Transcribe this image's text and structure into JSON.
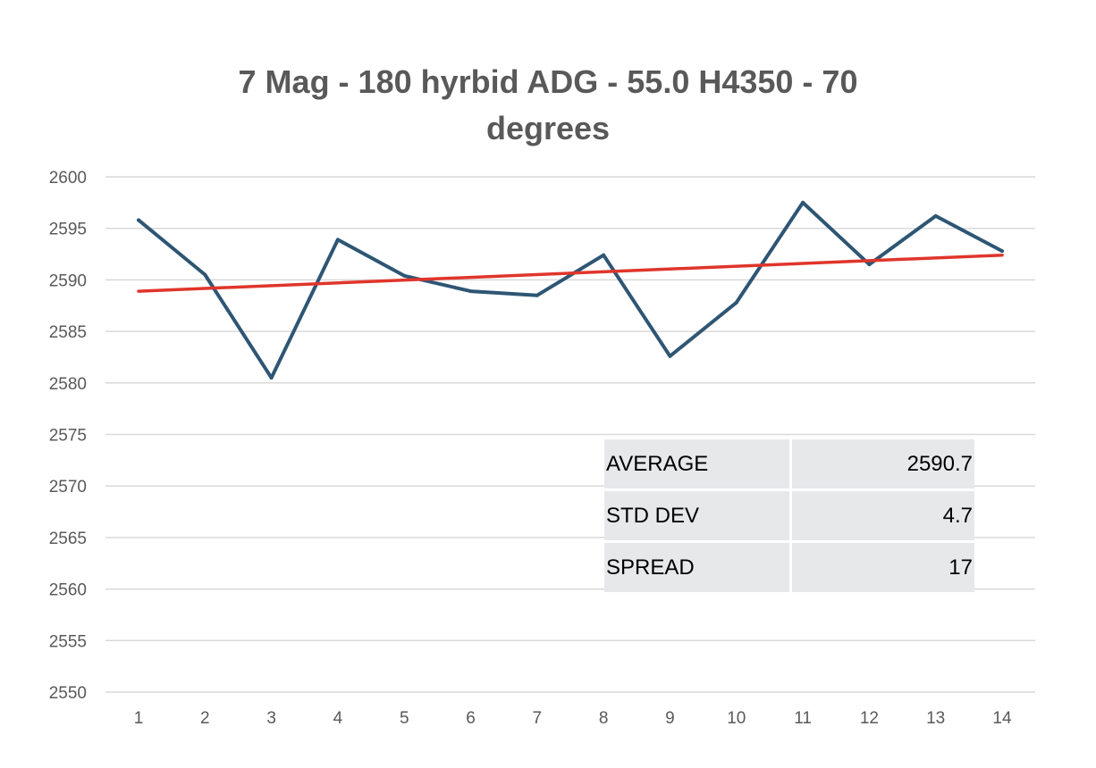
{
  "chart_data": {
    "type": "line",
    "title_lines": [
      "7 Mag - 180 hyrbid ADG - 55.0 H4350 - 70",
      "degrees"
    ],
    "x": [
      1,
      2,
      3,
      4,
      5,
      6,
      7,
      8,
      9,
      10,
      11,
      12,
      13,
      14
    ],
    "series": [
      {
        "values": [
          2595.8,
          2590.5,
          2580.5,
          2593.9,
          2590.4,
          2588.9,
          2588.5,
          2592.4,
          2582.6,
          2587.8,
          2597.5,
          2591.5,
          2596.2,
          2592.8
        ],
        "color": "#2e5674"
      }
    ],
    "trendline": {
      "start": 2588.9,
      "end": 2592.4,
      "color": "#e0352b"
    },
    "ylim": [
      2550,
      2600
    ],
    "yticks": [
      2550,
      2555,
      2560,
      2565,
      2570,
      2575,
      2580,
      2585,
      2590,
      2595,
      2600
    ],
    "grid": true,
    "legend": "none"
  },
  "stats": [
    {
      "label": "AVERAGE",
      "value": "2590.7"
    },
    {
      "label": "STD DEV",
      "value": "4.7"
    },
    {
      "label": "SPREAD",
      "value": "17"
    }
  ]
}
